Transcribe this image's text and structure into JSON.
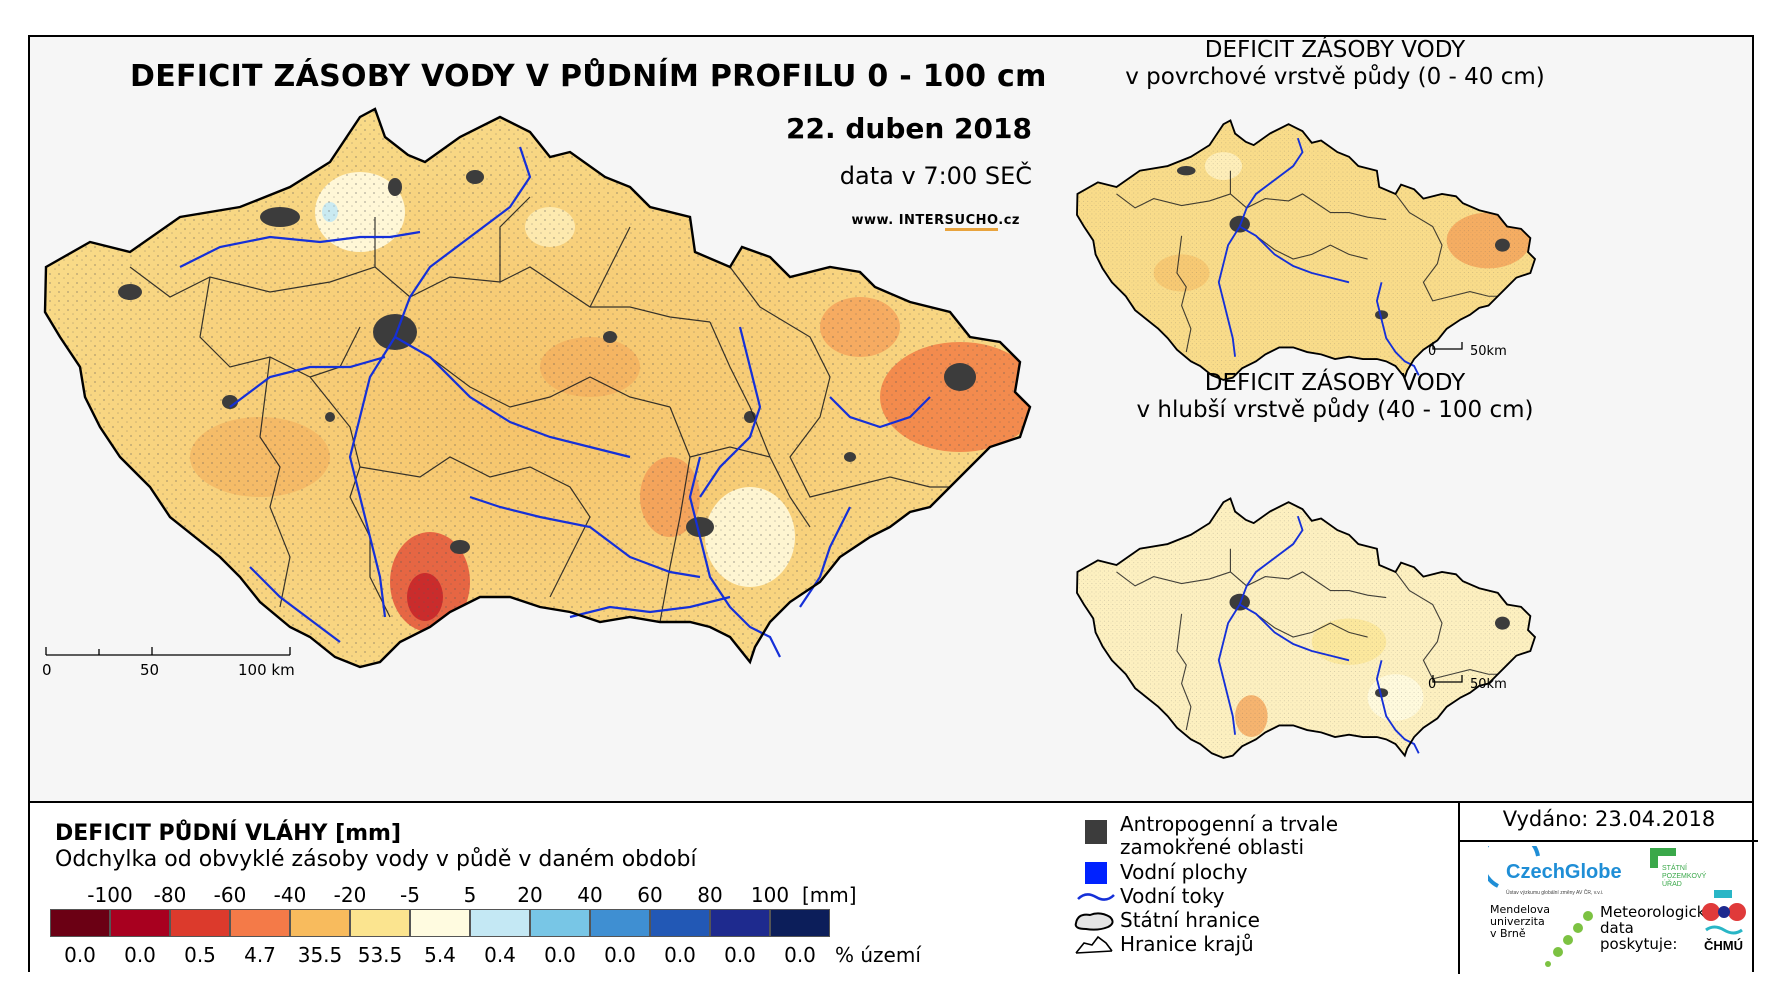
{
  "main_map": {
    "title": "DEFICIT ZÁSOBY VODY V PŮDNÍM PROFILU 0 - 100 cm",
    "date": "22. duben 2018",
    "time": "data v 7:00 SEČ",
    "website_prefix": "www. INTER",
    "website_highlight": "SUCHO",
    "website_suffix": ".cz",
    "scale": [
      "0",
      "50",
      "100 km"
    ]
  },
  "inset_top": {
    "title_line1": "DEFICIT ZÁSOBY VODY",
    "title_line2": "v povrchové vrstvě půdy (0 - 40 cm)",
    "scale": [
      "0",
      "50km"
    ]
  },
  "inset_bottom": {
    "title_line1": "DEFICIT ZÁSOBY VODY",
    "title_line2": "v hlubší vrstvě půdy (40 - 100 cm)",
    "scale": [
      "0",
      "50km"
    ]
  },
  "legend": {
    "title": "DEFICIT PŮDNÍ VLÁHY [mm]",
    "subtitle": "Odchylka od obvyklé zásoby vody v půdě v daném období",
    "ticks": [
      "-100",
      "-80",
      "-60",
      "-40",
      "-20",
      "-5",
      "5",
      "20",
      "40",
      "60",
      "80",
      "100"
    ],
    "unit": "[mm]",
    "classes": [
      {
        "color": "#6b0014",
        "pct": "0.0"
      },
      {
        "color": "#a8001f",
        "pct": "0.0"
      },
      {
        "color": "#dc3a2c",
        "pct": "0.5"
      },
      {
        "color": "#f47a48",
        "pct": "4.7"
      },
      {
        "color": "#f8bb5d",
        "pct": "35.5"
      },
      {
        "color": "#fbe48f",
        "pct": "53.5"
      },
      {
        "color": "#fffbe0",
        "pct": "5.4"
      },
      {
        "color": "#c4e8f4",
        "pct": "0.4"
      },
      {
        "color": "#78c6e6",
        "pct": "0.0"
      },
      {
        "color": "#3f8fd2",
        "pct": "0.0"
      },
      {
        "color": "#2258b5",
        "pct": "0.0"
      },
      {
        "color": "#1e2a8e",
        "pct": "0.0"
      },
      {
        "color": "#0c1e5a",
        "pct": "0.0"
      }
    ],
    "pct_unit": "% území"
  },
  "symbols": {
    "urban_line1": "Antropogenní a trvale",
    "urban_line2": "zamokřené oblasti",
    "water": "Vodní plochy",
    "rivers": "Vodní toky",
    "border": "Státní hranice",
    "regions": "Hranice krajů"
  },
  "issued": "Vydáno: 23.04.2018",
  "logos": {
    "czechglobe": "CzechGlobe",
    "czechglobe_sub": "Ústav výzkumu globální změny AV ČR, v.v.i.",
    "spu_line1": "STÁTNÍ",
    "spu_line2": "POZEMKOVÝ",
    "spu_line3": "ÚŘAD",
    "mendel_line1": "Mendelova",
    "mendel_line2": "univerzita",
    "mendel_line3": "v Brně",
    "met_line1": "Meteorologická",
    "met_line2": "data",
    "met_line3": "poskytuje:",
    "chmu": "ČHMÚ"
  },
  "colors": {
    "river": "#1530d8",
    "urban": "#3c3c3c",
    "border": "#000000"
  }
}
